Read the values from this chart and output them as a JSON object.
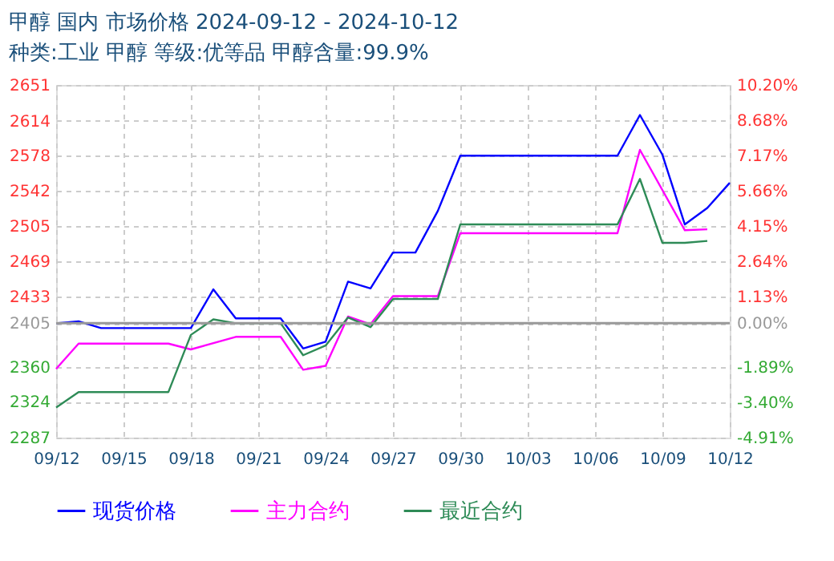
{
  "chart_data": {
    "type": "line",
    "title": "甲醇 国内 市场价格 2024-09-12 - 2024-10-12",
    "subtitle": "种类:工业 甲醇 等级:优等品 甲醇含量:99.9%",
    "series": [
      {
        "name": "现货价格",
        "color": "#0000ff",
        "x": [
          "2024-09-12",
          "2024-09-13",
          "2024-09-14",
          "2024-09-18",
          "2024-09-19",
          "2024-09-20",
          "2024-09-22",
          "2024-09-23",
          "2024-09-24",
          "2024-09-25",
          "2024-09-26",
          "2024-09-27",
          "2024-09-28",
          "2024-09-29",
          "2024-09-30",
          "2024-10-07",
          "2024-10-08",
          "2024-10-09",
          "2024-10-10",
          "2024-10-11",
          "2024-10-12"
        ],
        "values": [
          2405,
          2407,
          2400,
          2400,
          2440,
          2410,
          2410,
          2379,
          2386,
          2448,
          2441,
          2478,
          2478,
          2521,
          2578,
          2578,
          2620,
          2579,
          2507,
          2524,
          2550
        ]
      },
      {
        "name": "主力合约",
        "color": "#ff00ff",
        "x": [
          "2024-09-12",
          "2024-09-13",
          "2024-09-17",
          "2024-09-18",
          "2024-09-20",
          "2024-09-22",
          "2024-09-23",
          "2024-09-24",
          "2024-09-25",
          "2024-09-26",
          "2024-09-27",
          "2024-09-29",
          "2024-09-30",
          "2024-10-07",
          "2024-10-08",
          "2024-10-10",
          "2024-10-11"
        ],
        "values": [
          2358,
          2384,
          2384,
          2378,
          2391,
          2391,
          2357,
          2361,
          2412,
          2404,
          2433,
          2433,
          2498,
          2498,
          2584,
          2501,
          2502
        ]
      },
      {
        "name": "最近合约",
        "color": "#2e8b57",
        "x": [
          "2024-09-12",
          "2024-09-13",
          "2024-09-17",
          "2024-09-18",
          "2024-09-19",
          "2024-09-20",
          "2024-09-22",
          "2024-09-23",
          "2024-09-24",
          "2024-09-25",
          "2024-09-26",
          "2024-09-27",
          "2024-09-29",
          "2024-09-30",
          "2024-10-07",
          "2024-10-08",
          "2024-10-09",
          "2024-10-10",
          "2024-10-11"
        ],
        "values": [
          2318,
          2334,
          2334,
          2393,
          2409,
          2405,
          2405,
          2372,
          2382,
          2411,
          2401,
          2430,
          2430,
          2507,
          2507,
          2554,
          2488,
          2488,
          2490
        ]
      }
    ],
    "xlim": [
      "2024-09-12",
      "2024-10-12"
    ],
    "xticks": [
      {
        "value": "2024-09-12",
        "label": "09/12"
      },
      {
        "value": "2024-09-15",
        "label": "09/15"
      },
      {
        "value": "2024-09-18",
        "label": "09/18"
      },
      {
        "value": "2024-09-21",
        "label": "09/21"
      },
      {
        "value": "2024-09-24",
        "label": "09/24"
      },
      {
        "value": "2024-09-27",
        "label": "09/27"
      },
      {
        "value": "2024-09-30",
        "label": "09/30"
      },
      {
        "value": "2024-10-03",
        "label": "10/03"
      },
      {
        "value": "2024-10-06",
        "label": "10/06"
      },
      {
        "value": "2024-10-09",
        "label": "10/09"
      },
      {
        "value": "2024-10-12",
        "label": "10/12"
      }
    ],
    "ylim": [
      2287,
      2651
    ],
    "yticks": [
      2287,
      2324,
      2360,
      2405,
      2433,
      2469,
      2505,
      2542,
      2578,
      2614,
      2651
    ],
    "y2lim": [
      -4.91,
      10.2
    ],
    "y2ticks": [
      {
        "value": -4.91,
        "label": "-4.91%"
      },
      {
        "value": -3.4,
        "label": "-3.40%"
      },
      {
        "value": -1.89,
        "label": "-1.89%"
      },
      {
        "value": 0,
        "label": "0.00%"
      },
      {
        "value": 1.13,
        "label": "1.13%"
      },
      {
        "value": 2.64,
        "label": "2.64%"
      },
      {
        "value": 4.15,
        "label": "4.15%"
      },
      {
        "value": 5.66,
        "label": "5.66%"
      },
      {
        "value": 7.17,
        "label": "7.17%"
      },
      {
        "value": 8.68,
        "label": "8.68%"
      },
      {
        "value": 10.2,
        "label": "10.20%"
      }
    ],
    "ref_lines": [
      {
        "axis": "y",
        "value": 2405,
        "color": "#999999",
        "line_style": "solid"
      }
    ],
    "grid": true,
    "legend": "bottom",
    "marker": "none",
    "line_style": "solid"
  }
}
